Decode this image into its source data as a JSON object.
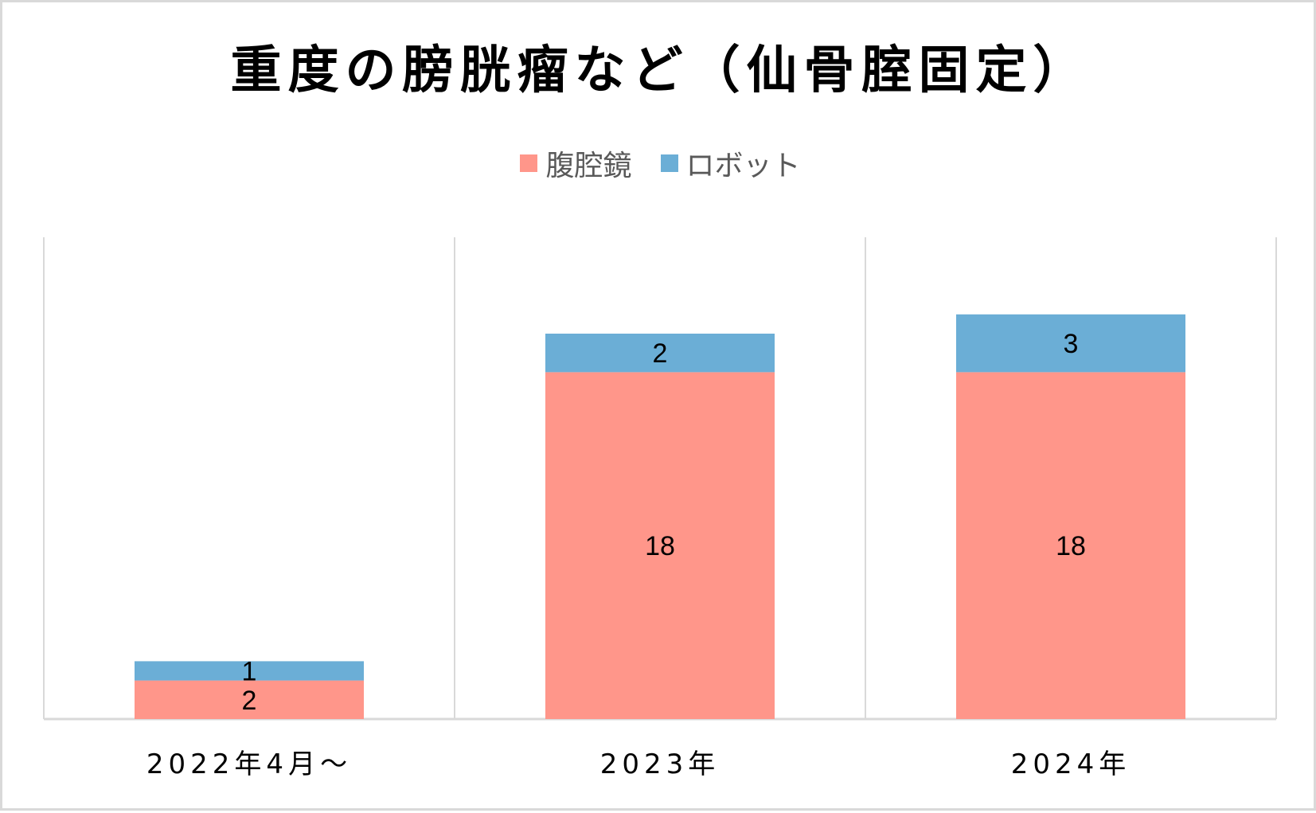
{
  "chart_data": {
    "type": "bar",
    "stacked": true,
    "title": "重度の膀胱瘤など（仙骨腟固定）",
    "categories": [
      "2022年4月～",
      "2023年",
      "2024年"
    ],
    "series": [
      {
        "name": "腹腔鏡",
        "color": "#ff968a",
        "values": [
          2,
          18,
          18
        ]
      },
      {
        "name": "ロボット",
        "color": "#6baed6",
        "values": [
          1,
          2,
          3
        ]
      }
    ],
    "ylim": [
      0,
      25
    ],
    "legend_position": "top",
    "grid": "vertical category separators",
    "data_labels": true
  },
  "colors": {
    "axis": "#d9d9d9",
    "frame": "#d9d9d9"
  }
}
